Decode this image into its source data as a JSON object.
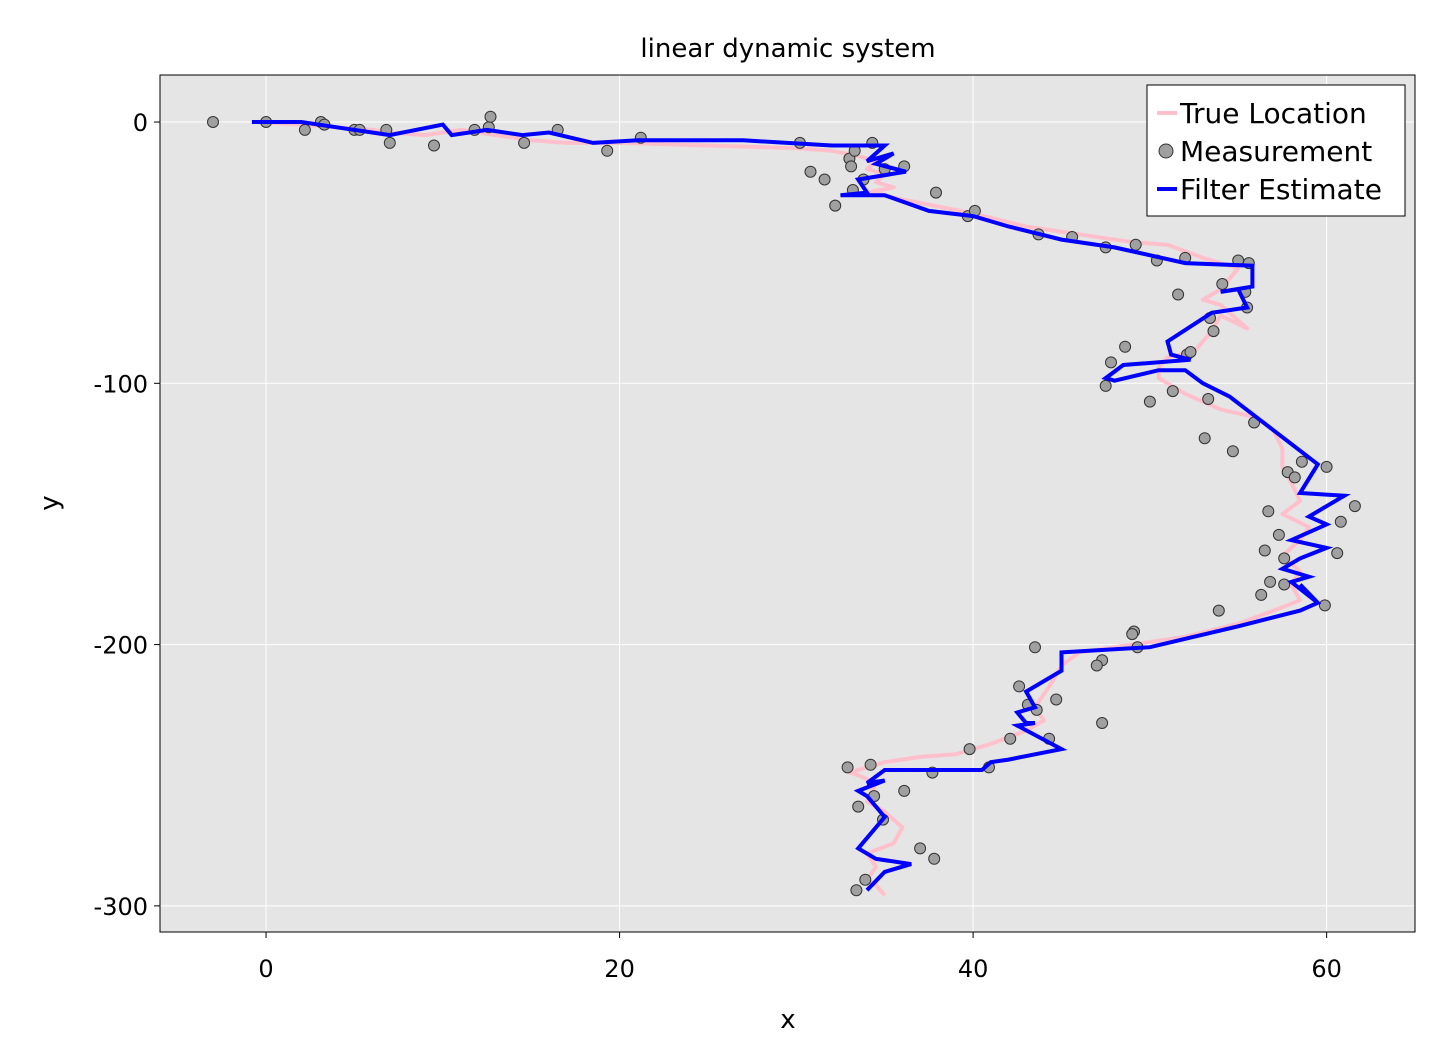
{
  "chart_data": {
    "type": "line",
    "title": "linear dynamic system",
    "xlabel": "x",
    "ylabel": "y",
    "xlim": [
      -6,
      65
    ],
    "ylim": [
      -310,
      18
    ],
    "x_ticks": [
      0,
      20,
      40,
      60
    ],
    "y_ticks": [
      0,
      -100,
      -200,
      -300
    ],
    "x_tick_labels": [
      "0",
      "20",
      "40",
      "60"
    ],
    "y_tick_labels": [
      "0",
      "-100",
      "-200",
      "-300"
    ],
    "grid": true,
    "legend_position": "top-right",
    "background_color": "#e5e5e5",
    "series": [
      {
        "name": "True Location",
        "kind": "line",
        "color": "#ffc0cb",
        "x": [
          -0.5,
          2,
          4,
          6,
          7,
          9,
          11,
          13,
          15,
          17,
          20,
          25,
          30,
          32,
          33.5,
          34.5,
          34,
          35,
          34.5,
          35.5,
          34,
          33.5,
          34.5,
          35.5,
          37,
          40,
          43,
          46,
          49,
          51,
          53,
          55,
          54.5,
          54,
          53,
          54,
          55.5,
          54,
          53.5,
          52.5,
          51,
          50.5,
          50.5,
          52,
          54,
          56,
          57,
          57.5,
          57.5,
          58,
          58.5,
          57.5,
          59,
          58.5,
          57.5,
          58.5,
          58,
          58.5,
          57,
          55,
          52,
          49,
          46,
          45,
          44.5,
          44,
          43.5,
          44,
          43,
          41,
          39,
          37,
          35,
          33,
          33.5,
          34.5,
          34,
          35,
          36,
          35.5,
          34,
          34.5,
          34,
          34.5,
          35
        ],
        "y": [
          0,
          -1,
          -2,
          -3,
          -4,
          -5,
          -3,
          -5,
          -7,
          -8,
          -8,
          -9,
          -10,
          -11,
          -13,
          -15,
          -18,
          -20,
          -23,
          -25,
          -27,
          -28,
          -27,
          -29,
          -31,
          -35,
          -40,
          -43,
          -46,
          -47,
          -52,
          -56,
          -60,
          -64,
          -68,
          -70,
          -79,
          -74,
          -80,
          -88,
          -90,
          -94,
          -98,
          -104,
          -110,
          -113,
          -118,
          -125,
          -132,
          -138,
          -145,
          -150,
          -155,
          -160,
          -166,
          -172,
          -177,
          -183,
          -187,
          -192,
          -197,
          -200,
          -203,
          -208,
          -214,
          -219,
          -224,
          -229,
          -233,
          -238,
          -242,
          -243,
          -245,
          -249,
          -250,
          -253,
          -260,
          -264,
          -270,
          -276,
          -280,
          -285,
          -290,
          -292,
          -296
        ]
      },
      {
        "name": "Measurement",
        "kind": "scatter",
        "color": "#a0a0a0",
        "x": [
          -3,
          0,
          2.2,
          3.1,
          3.3,
          5,
          5.3,
          6.8,
          7,
          9.5,
          11.8,
          12.6,
          12.7,
          14.6,
          16.5,
          19.3,
          21.2,
          30.2,
          30.8,
          31.6,
          32.2,
          33,
          33.1,
          33.2,
          33.3,
          33.8,
          34.3,
          35,
          36.1,
          37.9,
          39.7,
          40.1,
          43.7,
          45.6,
          47.5,
          49.2,
          50.4,
          51.6,
          52,
          53.4,
          53.6,
          54.1,
          55,
          55.4,
          55.5,
          55.6,
          48.6,
          47.8,
          52.1,
          52.3,
          47.5,
          51.3,
          50,
          53.3,
          55.9,
          53.1,
          54.7,
          58.6,
          57.8,
          58.2,
          60,
          61.6,
          56.7,
          57.3,
          60.8,
          56.5,
          57.6,
          60.6,
          56.8,
          57.6,
          56.3,
          59.9,
          53.9,
          49.1,
          49,
          49.3,
          47.3,
          43.5,
          47,
          42.6,
          44.7,
          43.6,
          43.1,
          44.3,
          47.3,
          42.1,
          39.8,
          40.9,
          34.2,
          32.9,
          37.7,
          36.1,
          34.4,
          33.5,
          34.9,
          37,
          37.8,
          33.9,
          33.4
        ],
        "y": [
          0,
          0,
          -3,
          0,
          -1,
          -3,
          -3,
          -3,
          -8,
          -9,
          -3,
          -2,
          2,
          -8,
          -3,
          -11,
          -6,
          -8,
          -19,
          -22,
          -32,
          -14,
          -17,
          -26,
          -11,
          -22,
          -8,
          -18,
          -17,
          -27,
          -36,
          -34,
          -43,
          -44,
          -48,
          -47,
          -53,
          -66,
          -52,
          -75,
          -80,
          -62,
          -53,
          -65,
          -71,
          -54,
          -86,
          -92,
          -89,
          -88,
          -101,
          -103,
          -107,
          -106,
          -115,
          -121,
          -126,
          -130,
          -134,
          -136,
          -132,
          -147,
          -149,
          -158,
          -153,
          -164,
          -167,
          -165,
          -176,
          -177,
          -181,
          -185,
          -187,
          -195,
          -196,
          -201,
          -206,
          -201,
          -208,
          -216,
          -221,
          -225,
          -223,
          -236,
          -230,
          -236,
          -240,
          -247,
          -246,
          -247,
          -249,
          -256,
          -258,
          -262,
          -267,
          -278,
          -282,
          -290,
          -294
        ]
      },
      {
        "name": "Filter Estimate",
        "kind": "line",
        "color": "#0000ff",
        "x": [
          -0.8,
          2,
          4,
          6,
          7,
          10,
          10.5,
          12.5,
          14.5,
          16,
          18.5,
          21,
          27,
          32,
          35,
          34,
          35.5,
          34.5,
          36.2,
          33.5,
          34,
          32.5,
          35,
          37.5,
          40,
          42,
          45,
          48,
          52,
          55.8,
          55.8,
          54,
          55,
          55.5,
          53.5,
          51,
          51.2,
          52.3,
          48.5,
          47.5,
          48,
          50.5,
          52,
          53,
          54.5,
          59.5,
          59.5,
          58.5,
          61,
          59,
          60,
          58,
          60,
          58.5,
          57.5,
          59,
          58,
          59.5,
          58.5,
          59.5,
          58.5,
          55,
          50,
          45,
          45,
          43,
          43.5,
          42.5,
          43,
          43.5,
          42.5,
          45,
          43.5,
          42,
          41,
          40.5,
          35,
          34,
          35,
          33.5,
          34,
          35,
          33.5,
          34.5,
          36.5,
          35,
          34
        ],
        "y": [
          0,
          0,
          -2,
          -4,
          -5,
          -1,
          -5,
          -3,
          -5,
          -4,
          -8,
          -7,
          -7,
          -9,
          -9,
          -15,
          -12,
          -16,
          -19,
          -22,
          -27,
          -28,
          -28,
          -34,
          -36,
          -40,
          -45,
          -48,
          -54,
          -55,
          -63,
          -65,
          -64,
          -71,
          -73,
          -84,
          -89,
          -91,
          -93,
          -98,
          -99,
          -95,
          -95,
          -100,
          -105,
          -131,
          -131,
          -142,
          -143,
          -151,
          -154,
          -160,
          -163,
          -167,
          -171,
          -174,
          -176,
          -184,
          -177,
          -184,
          -187,
          -193,
          -201,
          -203,
          -210,
          -218,
          -224,
          -226,
          -230,
          -230,
          -231,
          -240,
          -242,
          -244,
          -245,
          -248,
          -248,
          -253,
          -252,
          -256,
          -258,
          -266,
          -278,
          -282,
          -284,
          -287,
          -294
        ]
      }
    ]
  }
}
